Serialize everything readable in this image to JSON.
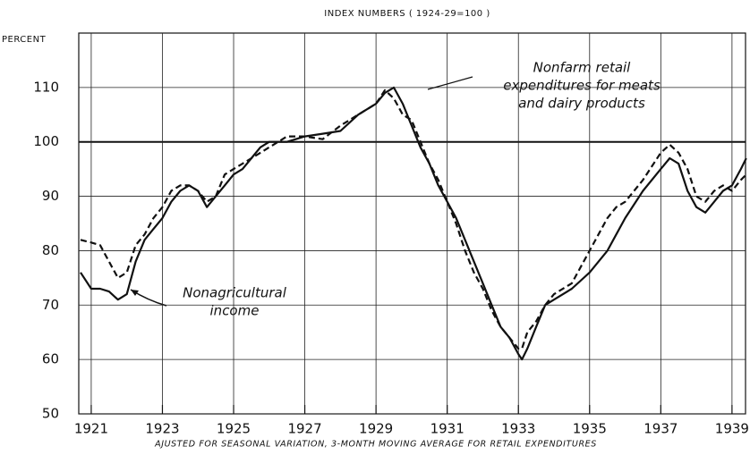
{
  "chart_data": {
    "type": "line",
    "title": "INDEX NUMBERS ( 1924-29=100 )",
    "y_label": "PERCENT",
    "footnote": "AJUSTED FOR SEASONAL VARIATION, 3-MONTH MOVING AVERAGE FOR RETAIL EXPENDITURES",
    "annotations": [
      {
        "lines": [
          "Nonfarm retail",
          "expenditures for meats",
          "and dairy products"
        ]
      },
      {
        "lines": [
          "Nonagricultural",
          "income"
        ]
      }
    ],
    "x": [
      1920.7,
      1921.0,
      1921.25,
      1921.5,
      1921.75,
      1922.0,
      1922.25,
      1922.5,
      1922.75,
      1923.0,
      1923.25,
      1923.5,
      1923.75,
      1924.0,
      1924.25,
      1924.5,
      1924.75,
      1925.0,
      1925.25,
      1925.5,
      1925.75,
      1926.0,
      1926.5,
      1927.0,
      1927.5,
      1928.0,
      1928.5,
      1929.0,
      1929.25,
      1929.5,
      1929.75,
      1930.0,
      1930.25,
      1930.5,
      1930.75,
      1931.0,
      1931.25,
      1931.5,
      1931.75,
      1932.0,
      1932.25,
      1932.5,
      1932.75,
      1933.0,
      1933.1,
      1933.25,
      1933.5,
      1933.75,
      1934.0,
      1934.5,
      1935.0,
      1935.5,
      1935.75,
      1936.0,
      1936.5,
      1937.0,
      1937.25,
      1937.5,
      1937.75,
      1938.0,
      1938.25,
      1938.5,
      1938.75,
      1939.0,
      1939.25,
      1939.4
    ],
    "series": [
      {
        "color": "#111111",
        "dash": false,
        "values": [
          76,
          73,
          73,
          72.5,
          71,
          72,
          78,
          82,
          84,
          86,
          89,
          91,
          92,
          91,
          88,
          90,
          92,
          94,
          95,
          97,
          99,
          100,
          100,
          101,
          101.5,
          102,
          105,
          107,
          109,
          110,
          107,
          103,
          99,
          96,
          92,
          89,
          86,
          82,
          78,
          74,
          70,
          66,
          64,
          61,
          60,
          62,
          66,
          70,
          71,
          73,
          76,
          80,
          83,
          86,
          91,
          95,
          97,
          96,
          91,
          88,
          87,
          89,
          91,
          92,
          95,
          97
        ]
      },
      {
        "color": "#111111",
        "dash": true,
        "values": [
          82,
          81.5,
          81,
          78,
          75,
          76,
          81,
          83,
          86,
          88,
          91,
          92,
          92,
          91,
          89,
          90,
          94,
          95,
          96,
          97,
          98,
          99,
          101,
          101,
          100.5,
          103,
          105,
          107,
          109.5,
          108,
          105,
          104,
          100,
          96,
          93,
          89,
          85,
          80,
          76,
          73,
          69,
          66,
          64,
          62,
          62,
          65,
          67,
          70,
          72,
          74,
          80,
          86,
          88,
          89,
          93,
          98,
          99.5,
          98,
          95,
          90,
          89,
          91,
          92,
          91,
          93,
          94
        ]
      }
    ],
    "xlim": [
      1920.65,
      1939.38
    ],
    "xticks": [
      1921,
      1923,
      1925,
      1927,
      1929,
      1931,
      1933,
      1935,
      1937,
      1939
    ],
    "ylim": [
      50,
      120
    ],
    "yticks": [
      50,
      60,
      70,
      80,
      90,
      100,
      110
    ],
    "reference_line": 100,
    "grid": true
  }
}
